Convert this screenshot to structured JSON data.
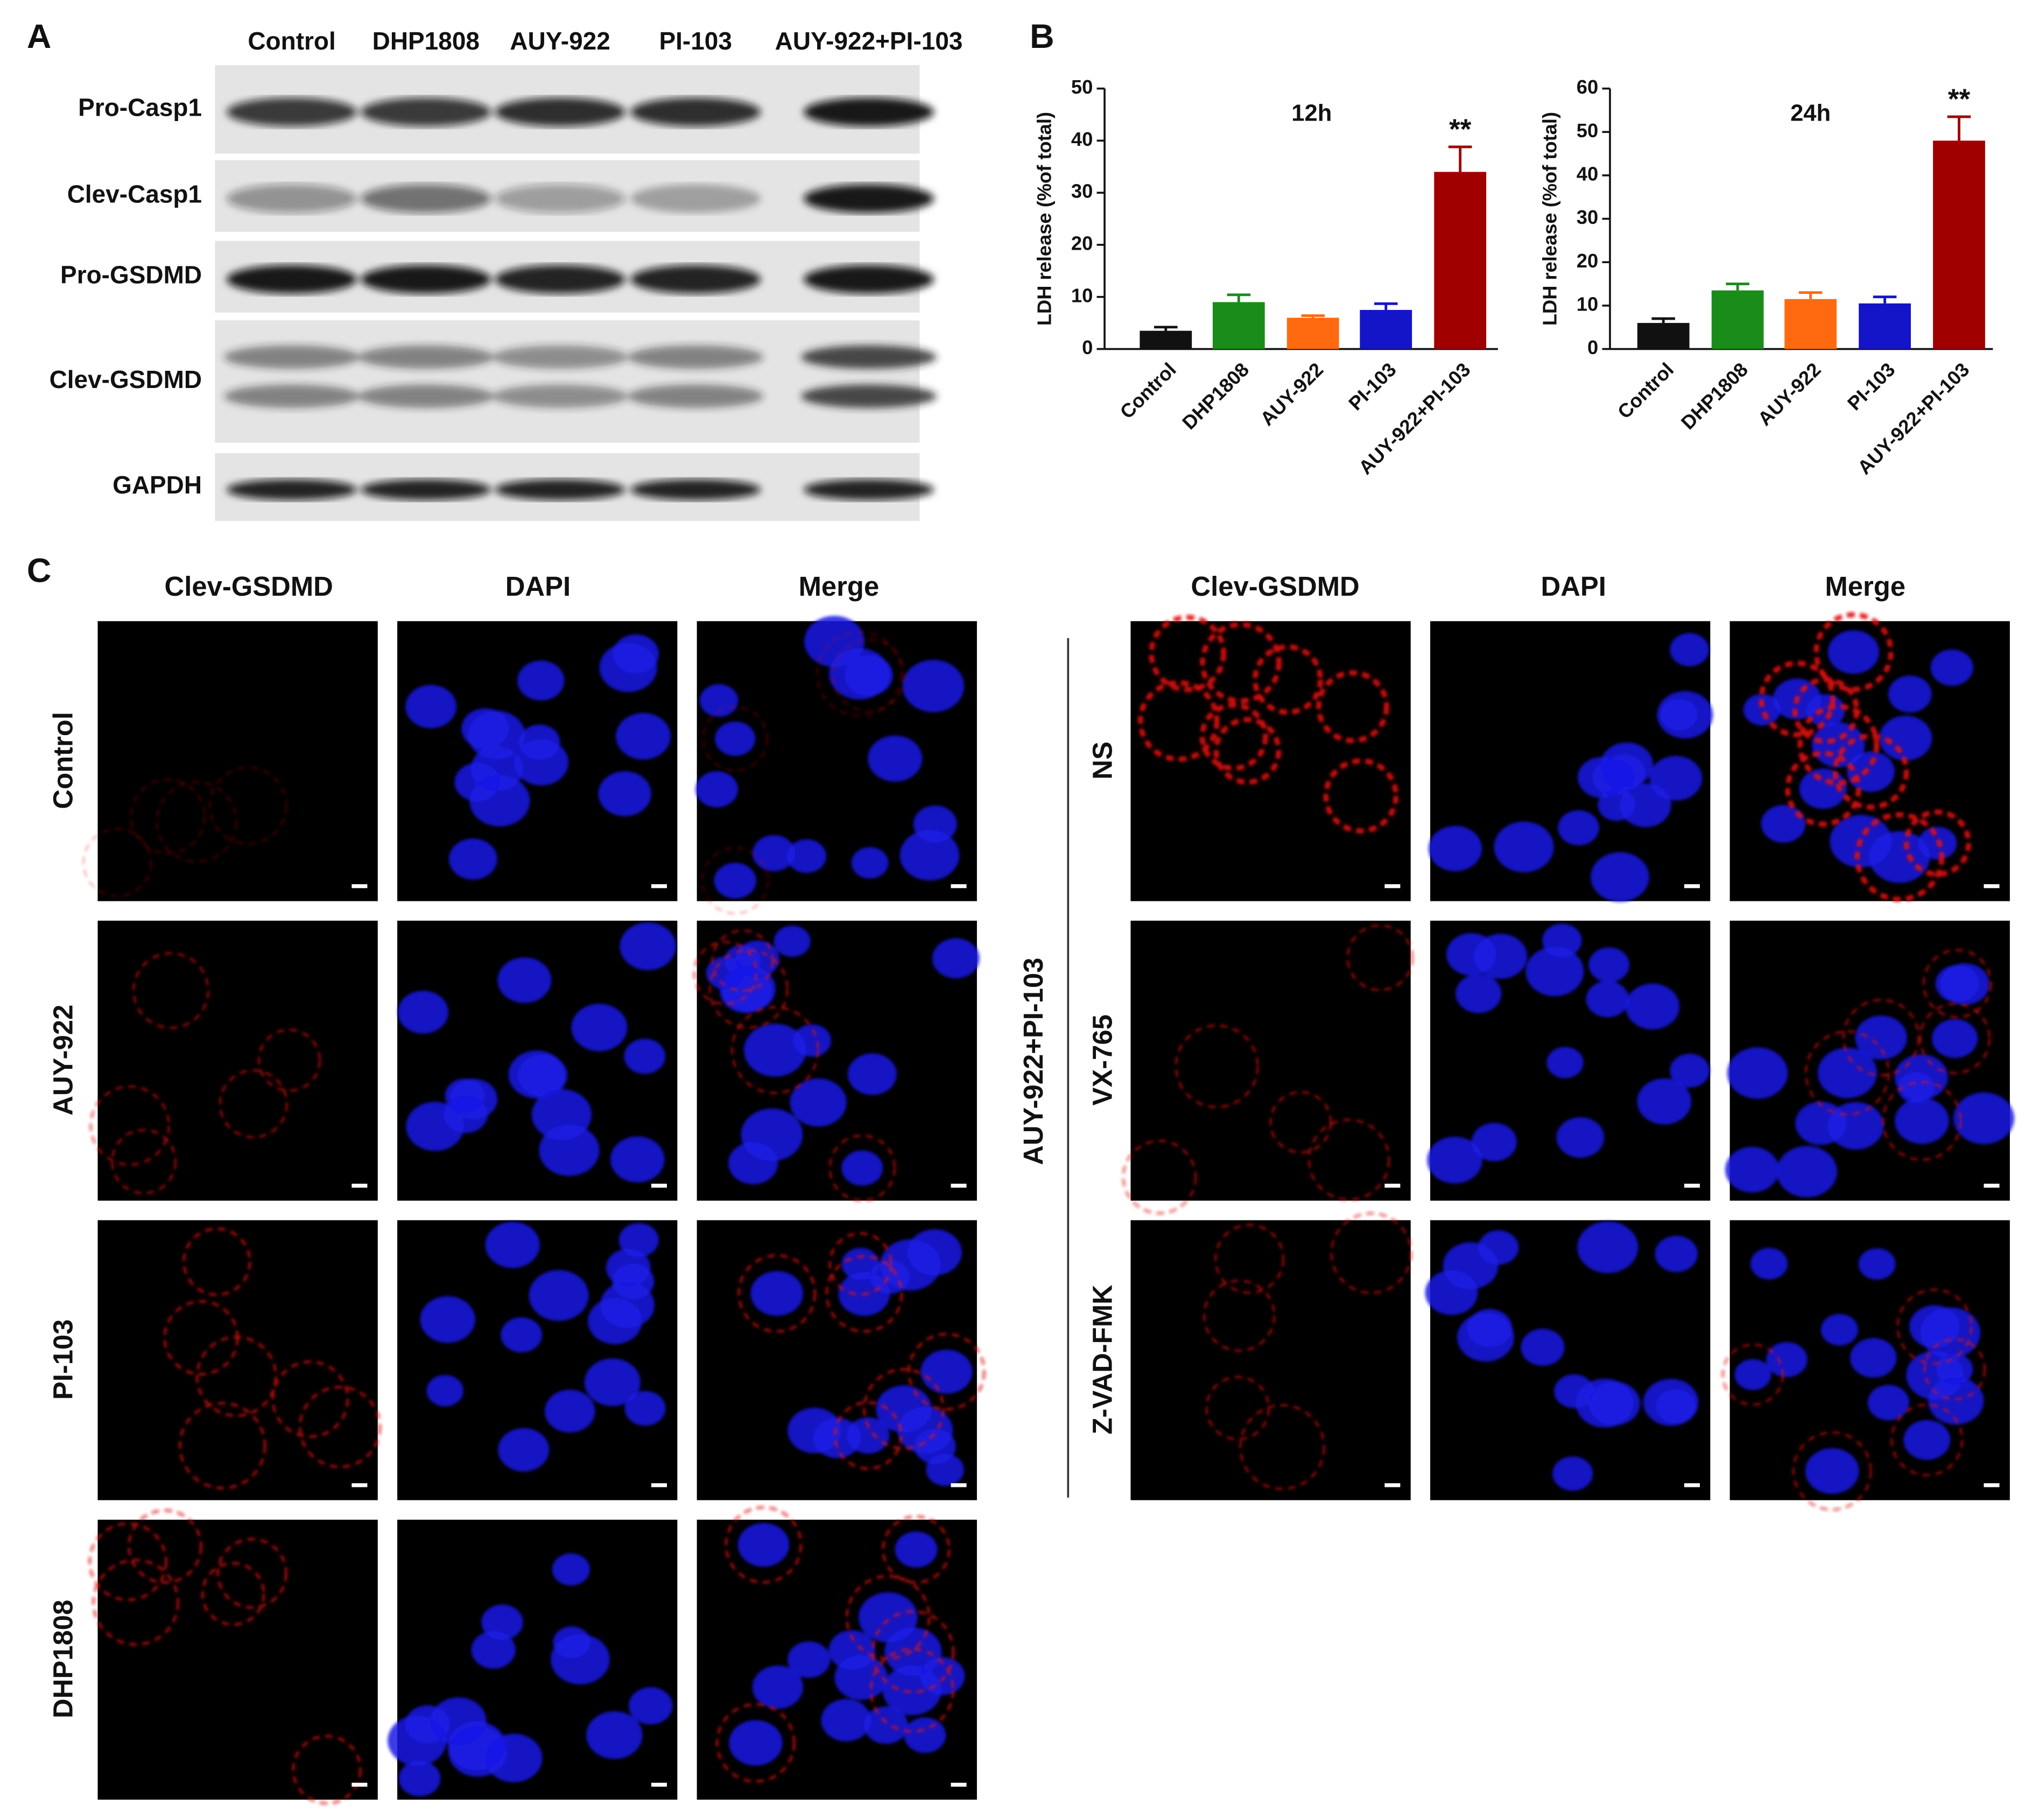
{
  "panel_labels": [
    "A",
    "B",
    "C"
  ],
  "blot": {
    "lanes": [
      "Control",
      "DHP1808",
      "AUY-922",
      "PI-103",
      "AUY-922+PI-103"
    ],
    "rows": [
      "Pro-Casp1",
      "Clev-Casp1",
      "Pro-GSDMD",
      "Clev-GSDMD",
      "GAPDH"
    ]
  },
  "chart_data": [
    {
      "type": "bar",
      "title": "12h",
      "y_label": "LDH release (%of total)",
      "categories": [
        "Control",
        "DHP1808",
        "AUY-922",
        "PI-103",
        "AUY-922+PI-103"
      ],
      "values": [
        3.5,
        9,
        6,
        7.5,
        34
      ],
      "errors": [
        0.7,
        1.4,
        0.4,
        1.2,
        4.8
      ],
      "colors": [
        "#111111",
        "#1a8c1a",
        "#ff6a10",
        "#1414c8",
        "#a00000"
      ],
      "ylim": [
        0,
        50
      ],
      "yticks": [
        0,
        10,
        20,
        30,
        40,
        50
      ],
      "annotations": [
        {
          "text": "**",
          "category": "AUY-922+PI-103"
        }
      ]
    },
    {
      "type": "bar",
      "title": "24h",
      "y_label": "LDH release (%of total)",
      "categories": [
        "Control",
        "DHP1808",
        "AUY-922",
        "PI-103",
        "AUY-922+PI-103"
      ],
      "values": [
        6,
        13.5,
        11.5,
        10.5,
        48
      ],
      "errors": [
        1,
        1.5,
        1.5,
        1.5,
        5.5
      ],
      "colors": [
        "#111111",
        "#1a8c1a",
        "#ff6a10",
        "#1414c8",
        "#a00000"
      ],
      "ylim": [
        0,
        60
      ],
      "yticks": [
        0,
        10,
        20,
        30,
        40,
        50,
        60
      ],
      "annotations": [
        {
          "text": "**",
          "category": "AUY-922+PI-103"
        }
      ]
    }
  ],
  "imaging": {
    "columns": [
      "Clev-GSDMD",
      "DAPI",
      "Merge"
    ],
    "left_rows": [
      "Control",
      "AUY-922",
      "PI-103",
      "DHP1808"
    ],
    "right_group": "AUY-922+PI-103",
    "right_rows": [
      "NS",
      "VX-765",
      "Z-VAD-FMK"
    ]
  }
}
